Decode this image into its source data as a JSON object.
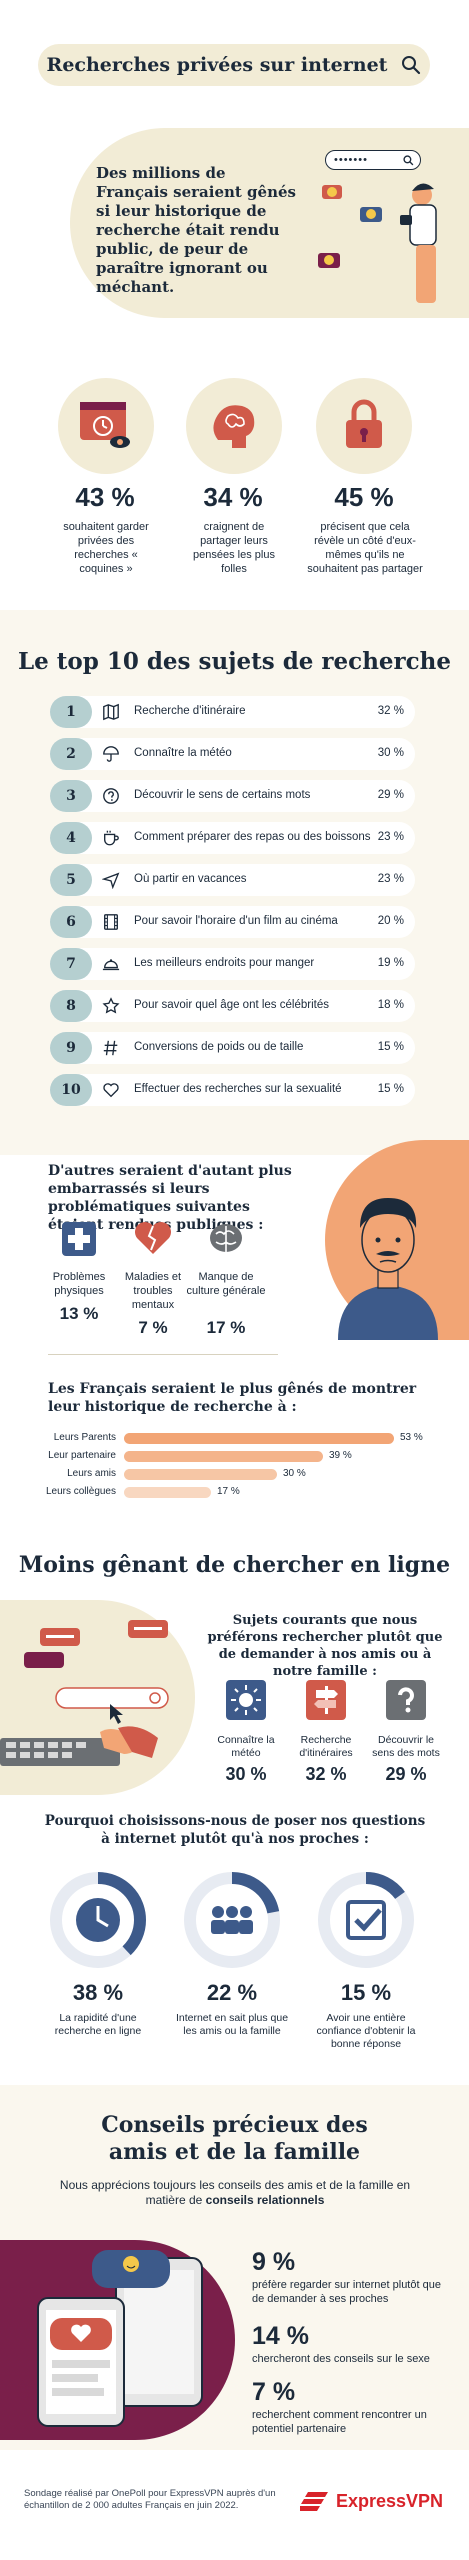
{
  "header": {
    "title": "Recherches privées sur internet",
    "icon": "search-icon"
  },
  "intro": {
    "text": "Des millions de Français seraient gênés si leur historique de recherche était rendu public, de peur de paraître ignorant ou méchant.",
    "search_dots": "•••••••"
  },
  "stats": [
    {
      "icon": "private-window-icon",
      "pct": "43 %",
      "desc": "souhaitent garder privées des recherches « coquines »"
    },
    {
      "icon": "brain-icon",
      "pct": "34 %",
      "desc": "craignent de partager leurs pensées les plus folles"
    },
    {
      "icon": "padlock-icon",
      "pct": "45 %",
      "desc": "précisent que cela révèle un côté d'eux-mêmes qu'ils ne souhaitent pas partager"
    }
  ],
  "top10": {
    "title": "Le top 10 des sujets de recherche",
    "items": [
      {
        "rank": "1",
        "icon": "map-icon",
        "label": "Recherche d'itinéraire",
        "value": "32 %"
      },
      {
        "rank": "2",
        "icon": "umbrella-icon",
        "label": "Connaître la météo",
        "value": "30 %"
      },
      {
        "rank": "3",
        "icon": "question-icon",
        "label": "Découvrir le sens de certains mots",
        "value": "29 %"
      },
      {
        "rank": "4",
        "icon": "cup-icon",
        "label": "Comment préparer des repas ou des boissons",
        "value": "23 %"
      },
      {
        "rank": "5",
        "icon": "plane-icon",
        "label": "Où partir en vacances",
        "value": "23 %"
      },
      {
        "rank": "6",
        "icon": "film-icon",
        "label": "Pour savoir l'horaire d'un film au cinéma",
        "value": "20 %"
      },
      {
        "rank": "7",
        "icon": "food-cloche-icon",
        "label": "Les meilleurs endroits pour manger",
        "value": "19 %"
      },
      {
        "rank": "8",
        "icon": "star-icon",
        "label": "Pour savoir quel âge ont les célébrités",
        "value": "18 %"
      },
      {
        "rank": "9",
        "icon": "hashtag-icon",
        "label": "Conversions de poids ou de taille",
        "value": "15 %"
      },
      {
        "rank": "10",
        "icon": "heart-icon",
        "label": "Effectuer des recherches sur la sexualité",
        "value": "15 %"
      }
    ]
  },
  "embarrassed": {
    "title": "D'autres seraient d'autant plus embarrassés si leurs problématiques suivantes étaient rendues publiques :",
    "items": [
      {
        "icon": "medical-cross-icon",
        "label": "Problèmes physiques",
        "pct": "13 %"
      },
      {
        "icon": "broken-heart-icon",
        "label": "Maladies et troubles mentaux",
        "pct": "7 %"
      },
      {
        "icon": "brain-icon",
        "label": "Manque de culture générale",
        "pct": "17 %"
      }
    ]
  },
  "shown_to": {
    "title": "Les Français seraient le plus gênés de montrer leur historique de recherche à :",
    "chart_data": {
      "type": "bar",
      "categories": [
        "Leurs Parents",
        "Leur partenaire",
        "Leurs amis",
        "Leurs collègues"
      ],
      "values": [
        53,
        39,
        30,
        17
      ],
      "value_labels": [
        "53 %",
        "39 %",
        "30 %",
        "17 %"
      ],
      "xlim": [
        0,
        53
      ],
      "colors": [
        "#f2a575",
        "#f4b48b",
        "#f6c6a5",
        "#f8d7c0"
      ]
    }
  },
  "less_awkward": {
    "title": "Moins gênant de chercher en ligne",
    "common_title": "Sujets courants que nous préférons rechercher plutôt que de demander à nos amis ou à notre famille :",
    "common": [
      {
        "icon": "sun-icon",
        "label": "Connaître la météo",
        "pct": "30 %",
        "color": "#3d5a8a"
      },
      {
        "icon": "signpost-icon",
        "label": "Recherche d'itinéraires",
        "pct": "32 %",
        "color": "#d05a4a"
      },
      {
        "icon": "question-icon",
        "label": "Découvrir le sens des mots",
        "pct": "29 %",
        "color": "#6b6f73"
      }
    ],
    "why_title": "Pourquoi choisissons-nous de poser nos questions à internet plutôt qu'à nos proches :",
    "why": [
      {
        "icon": "clock-icon",
        "pct": "38 %",
        "fraction": 0.38,
        "desc": "La rapidité d'une recherche en ligne"
      },
      {
        "icon": "group-icon",
        "pct": "22 %",
        "fraction": 0.22,
        "desc": "Internet en sait plus que les amis ou la famille"
      },
      {
        "icon": "checkbox-icon",
        "pct": "15 %",
        "fraction": 0.15,
        "desc": "Avoir une entière confiance d'obtenir la bonne réponse"
      }
    ]
  },
  "tips": {
    "title_line1": "Conseils précieux des",
    "title_line2": "amis et de la famille",
    "sub_plain": "Nous apprécions toujours les conseils des amis et de la famille en matière de ",
    "sub_bold": "conseils relationnels",
    "items": [
      {
        "pct": "9 %",
        "desc": "préfère regarder sur internet plutôt que de demander à ses proches"
      },
      {
        "pct": "14 %",
        "desc": "chercheront des conseils sur le sexe"
      },
      {
        "pct": "7 %",
        "desc": "recherchent comment rencontrer un potentiel partenaire"
      }
    ]
  },
  "footer": {
    "note": "Sondage réalisé par OnePoll pour ExpressVPN auprès d'un échantillon de 2 000 adultes Français en juin 2022.",
    "brand": "ExpressVPN",
    "brand_color": "#d8232a"
  },
  "colors": {
    "navy": "#1c2a3a",
    "cream": "#f2ecd6",
    "teal": "#b5cfd0",
    "orange": "#f2a575",
    "plum": "#7a1f4a",
    "blue": "#3d5a8a"
  }
}
